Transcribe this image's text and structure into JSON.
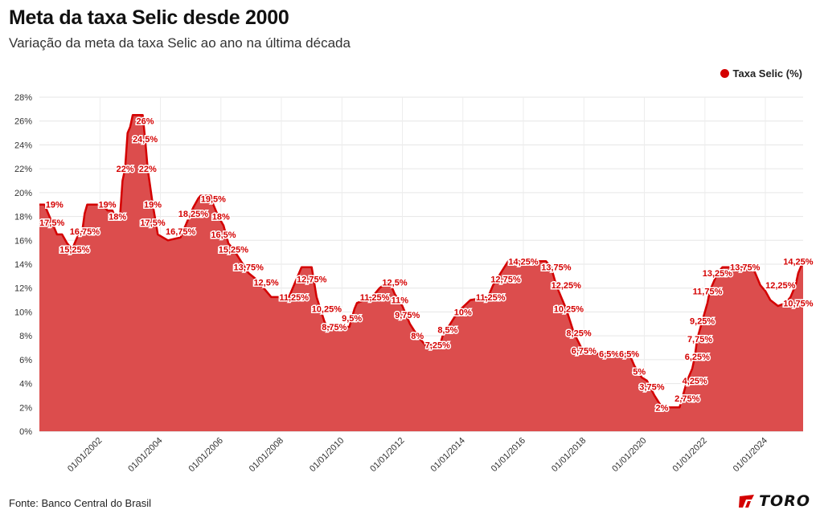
{
  "header": {
    "title": "Meta da taxa Selic desde 2000",
    "subtitle": "Variação da meta da taxa Selic ao ano na última década"
  },
  "legend": {
    "label": "Taxa Selic (%)"
  },
  "footer": {
    "source": "Fonte: Banco Central do Brasil",
    "logo_text": "TORO"
  },
  "colors": {
    "accent": "#d40000",
    "area_fill": "#dc4d4d"
  },
  "chart_data": {
    "type": "area",
    "title": "Meta da taxa Selic desde 2000",
    "subtitle": "Variação da meta da taxa Selic ao ano na última década",
    "series": [
      {
        "name": "Taxa Selic (%)",
        "points": [
          [
            "2000-01-01",
            19
          ],
          [
            "2000-03-01",
            19
          ],
          [
            "2000-04-01",
            18.5
          ],
          [
            "2000-06-01",
            17.5
          ],
          [
            "2000-08-01",
            16.5
          ],
          [
            "2000-10-01",
            16.5
          ],
          [
            "2000-12-01",
            15.75
          ],
          [
            "2001-02-01",
            15.25
          ],
          [
            "2001-03-01",
            15.75
          ],
          [
            "2001-04-01",
            16.25
          ],
          [
            "2001-06-01",
            16.75
          ],
          [
            "2001-07-01",
            18.25
          ],
          [
            "2001-08-01",
            19
          ],
          [
            "2002-02-01",
            19
          ],
          [
            "2002-04-01",
            18.5
          ],
          [
            "2002-06-01",
            18.5
          ],
          [
            "2002-07-01",
            18
          ],
          [
            "2002-09-01",
            18
          ],
          [
            "2002-10-01",
            21
          ],
          [
            "2002-11-01",
            22
          ],
          [
            "2002-12-01",
            25
          ],
          [
            "2003-01-01",
            25.5
          ],
          [
            "2003-02-01",
            26.5
          ],
          [
            "2003-06-01",
            26.5
          ],
          [
            "2003-07-01",
            24.5
          ],
          [
            "2003-08-01",
            22
          ],
          [
            "2003-10-01",
            19
          ],
          [
            "2003-12-01",
            16.5
          ],
          [
            "2004-04-01",
            16
          ],
          [
            "2004-09-01",
            16.25
          ],
          [
            "2004-10-01",
            16.75
          ],
          [
            "2004-12-01",
            17.75
          ],
          [
            "2005-02-01",
            18.75
          ],
          [
            "2005-04-01",
            19.5
          ],
          [
            "2005-05-01",
            19.75
          ],
          [
            "2005-09-01",
            19.75
          ],
          [
            "2005-10-01",
            19
          ],
          [
            "2005-12-01",
            18
          ],
          [
            "2006-02-01",
            17.25
          ],
          [
            "2006-04-01",
            15.75
          ],
          [
            "2006-06-01",
            15.25
          ],
          [
            "2006-09-01",
            14.25
          ],
          [
            "2006-12-01",
            13.25
          ],
          [
            "2007-03-01",
            12.75
          ],
          [
            "2007-06-01",
            12
          ],
          [
            "2007-09-01",
            11.25
          ],
          [
            "2008-04-01",
            11.25
          ],
          [
            "2008-06-01",
            12.25
          ],
          [
            "2008-09-01",
            13.75
          ],
          [
            "2009-01-01",
            13.75
          ],
          [
            "2009-03-01",
            11.25
          ],
          [
            "2009-06-01",
            9.25
          ],
          [
            "2009-07-01",
            8.75
          ],
          [
            "2010-04-01",
            8.75
          ],
          [
            "2010-06-01",
            10.25
          ],
          [
            "2010-07-01",
            10.75
          ],
          [
            "2011-01-01",
            11.25
          ],
          [
            "2011-04-01",
            12
          ],
          [
            "2011-07-01",
            12.5
          ],
          [
            "2011-08-01",
            12.5
          ],
          [
            "2011-10-01",
            11.5
          ],
          [
            "2012-01-01",
            10.5
          ],
          [
            "2012-04-01",
            9
          ],
          [
            "2012-07-01",
            8
          ],
          [
            "2012-10-01",
            7.25
          ],
          [
            "2013-04-01",
            7.25
          ],
          [
            "2013-05-01",
            8
          ],
          [
            "2013-08-01",
            9
          ],
          [
            "2013-11-01",
            10
          ],
          [
            "2014-04-01",
            11
          ],
          [
            "2014-11-01",
            11.25
          ],
          [
            "2015-01-01",
            12.25
          ],
          [
            "2015-04-01",
            13.25
          ],
          [
            "2015-07-01",
            14.25
          ],
          [
            "2016-10-01",
            14.25
          ],
          [
            "2016-12-01",
            13.75
          ],
          [
            "2017-02-01",
            12.25
          ],
          [
            "2017-04-01",
            11.25
          ],
          [
            "2017-06-01",
            10.25
          ],
          [
            "2017-09-01",
            8.25
          ],
          [
            "2017-12-01",
            7
          ],
          [
            "2018-03-01",
            6.5
          ],
          [
            "2019-07-01",
            6.5
          ],
          [
            "2019-09-01",
            5.5
          ],
          [
            "2019-12-01",
            4.5
          ],
          [
            "2020-02-01",
            4.25
          ],
          [
            "2020-05-01",
            3
          ],
          [
            "2020-08-01",
            2
          ],
          [
            "2021-03-01",
            2
          ],
          [
            "2021-05-01",
            3.5
          ],
          [
            "2021-06-01",
            4.25
          ],
          [
            "2021-08-01",
            5.25
          ],
          [
            "2021-09-01",
            6.25
          ],
          [
            "2021-10-01",
            7.75
          ],
          [
            "2021-12-01",
            9.25
          ],
          [
            "2022-02-01",
            10.75
          ],
          [
            "2022-03-01",
            11.75
          ],
          [
            "2022-05-01",
            12.75
          ],
          [
            "2022-06-01",
            13.25
          ],
          [
            "2022-08-01",
            13.75
          ],
          [
            "2023-08-01",
            13.75
          ],
          [
            "2023-09-01",
            13.25
          ],
          [
            "2023-11-01",
            12.25
          ],
          [
            "2024-01-01",
            11.75
          ],
          [
            "2024-03-01",
            11
          ],
          [
            "2024-06-01",
            10.5
          ],
          [
            "2024-09-01",
            10.75
          ],
          [
            "2024-11-01",
            11.25
          ],
          [
            "2025-01-01",
            12.25
          ],
          [
            "2025-02-01",
            13.25
          ],
          [
            "2025-04-01",
            14.25
          ]
        ]
      }
    ],
    "data_labels": [
      {
        "text": "19%",
        "x": "2000-07-01",
        "y": 19
      },
      {
        "text": "17,5%",
        "x": "2000-06-01",
        "y": 17.5
      },
      {
        "text": "16,75%",
        "x": "2001-07-01",
        "y": 16.75
      },
      {
        "text": "15,25%",
        "x": "2001-03-01",
        "y": 15.25
      },
      {
        "text": "19%",
        "x": "2002-04-01",
        "y": 19
      },
      {
        "text": "18%",
        "x": "2002-08-01",
        "y": 18
      },
      {
        "text": "22%",
        "x": "2002-11-01",
        "y": 22
      },
      {
        "text": "26%",
        "x": "2003-07-01",
        "y": 26
      },
      {
        "text": "24,5%",
        "x": "2003-07-01",
        "y": 24.5
      },
      {
        "text": "22%",
        "x": "2003-08-01",
        "y": 22
      },
      {
        "text": "19%",
        "x": "2003-10-01",
        "y": 19
      },
      {
        "text": "17,5%",
        "x": "2003-10-01",
        "y": 17.5
      },
      {
        "text": "16,75%",
        "x": "2004-09-01",
        "y": 16.75
      },
      {
        "text": "18,25%",
        "x": "2005-02-01",
        "y": 18.25
      },
      {
        "text": "19,5%",
        "x": "2005-10-01",
        "y": 19.5
      },
      {
        "text": "18%",
        "x": "2006-01-01",
        "y": 18
      },
      {
        "text": "16,5%",
        "x": "2006-02-01",
        "y": 16.5
      },
      {
        "text": "15,25%",
        "x": "2006-06-01",
        "y": 15.25
      },
      {
        "text": "13,75%",
        "x": "2006-12-01",
        "y": 13.75
      },
      {
        "text": "12,5%",
        "x": "2007-07-01",
        "y": 12.5
      },
      {
        "text": "11,25%",
        "x": "2008-06-01",
        "y": 11.25
      },
      {
        "text": "12,75%",
        "x": "2009-01-01",
        "y": 12.75
      },
      {
        "text": "10,25%",
        "x": "2009-07-01",
        "y": 10.25
      },
      {
        "text": "8,75%",
        "x": "2009-10-01",
        "y": 8.75
      },
      {
        "text": "9,5%",
        "x": "2010-05-01",
        "y": 9.5
      },
      {
        "text": "11,25%",
        "x": "2011-02-01",
        "y": 11.25
      },
      {
        "text": "12,5%",
        "x": "2011-10-01",
        "y": 12.5
      },
      {
        "text": "11%",
        "x": "2011-12-01",
        "y": 11
      },
      {
        "text": "9,75%",
        "x": "2012-03-01",
        "y": 9.75
      },
      {
        "text": "8%",
        "x": "2012-07-01",
        "y": 8
      },
      {
        "text": "7,25%",
        "x": "2013-03-01",
        "y": 7.25
      },
      {
        "text": "8,5%",
        "x": "2013-07-01",
        "y": 8.5
      },
      {
        "text": "10%",
        "x": "2014-01-01",
        "y": 10
      },
      {
        "text": "11,25%",
        "x": "2014-12-01",
        "y": 11.25
      },
      {
        "text": "12,75%",
        "x": "2015-06-01",
        "y": 12.75
      },
      {
        "text": "14,25%",
        "x": "2016-01-01",
        "y": 14.25
      },
      {
        "text": "13,75%",
        "x": "2017-02-01",
        "y": 13.75
      },
      {
        "text": "12,25%",
        "x": "2017-06-01",
        "y": 12.25
      },
      {
        "text": "10,25%",
        "x": "2017-07-01",
        "y": 10.25
      },
      {
        "text": "8,25%",
        "x": "2017-11-01",
        "y": 8.25
      },
      {
        "text": "6,75%",
        "x": "2018-01-01",
        "y": 6.75
      },
      {
        "text": "6,5%",
        "x": "2018-11-01",
        "y": 6.5
      },
      {
        "text": "6,5%",
        "x": "2019-07-01",
        "y": 6.5
      },
      {
        "text": "5%",
        "x": "2019-11-01",
        "y": 5
      },
      {
        "text": "3,75%",
        "x": "2020-04-01",
        "y": 3.75
      },
      {
        "text": "2%",
        "x": "2020-08-01",
        "y": 2
      },
      {
        "text": "2,75%",
        "x": "2021-06-01",
        "y": 2.75
      },
      {
        "text": "4,25%",
        "x": "2021-09-01",
        "y": 4.25
      },
      {
        "text": "6,25%",
        "x": "2021-10-01",
        "y": 6.25
      },
      {
        "text": "7,75%",
        "x": "2021-11-01",
        "y": 7.75
      },
      {
        "text": "9,25%",
        "x": "2021-12-01",
        "y": 9.25
      },
      {
        "text": "11,75%",
        "x": "2022-02-01",
        "y": 11.75
      },
      {
        "text": "13,25%",
        "x": "2022-06-01",
        "y": 13.25
      },
      {
        "text": "13,75%",
        "x": "2023-05-01",
        "y": 13.75
      },
      {
        "text": "12,25%",
        "x": "2024-07-01",
        "y": 12.25
      },
      {
        "text": "10,75%",
        "x": "2025-02-01",
        "y": 10.75
      },
      {
        "text": "14,25%",
        "x": "2025-02-01",
        "y": 14.25
      }
    ],
    "xlabel": "",
    "ylabel": "",
    "x_ticks": [
      "01/01/2002",
      "01/01/2004",
      "01/01/2006",
      "01/01/2008",
      "01/01/2010",
      "01/01/2012",
      "01/01/2014",
      "01/01/2016",
      "01/01/2018",
      "01/01/2020",
      "01/01/2022",
      "01/01/2024"
    ],
    "x_tick_dates": [
      "2002-01-01",
      "2004-01-01",
      "2006-01-01",
      "2008-01-01",
      "2010-01-01",
      "2012-01-01",
      "2014-01-01",
      "2016-01-01",
      "2018-01-01",
      "2020-01-01",
      "2022-01-01",
      "2024-01-01"
    ],
    "y_ticks": [
      "0%",
      "2%",
      "4%",
      "6%",
      "8%",
      "10%",
      "12%",
      "14%",
      "16%",
      "18%",
      "20%",
      "22%",
      "24%",
      "26%",
      "28%"
    ],
    "xlim": [
      "2000-01-01",
      "2025-04-01"
    ],
    "ylim": [
      0,
      28
    ],
    "grid": true,
    "legend_position": "top-right"
  }
}
